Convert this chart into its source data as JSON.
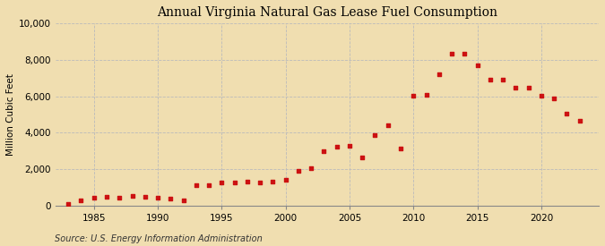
{
  "title": "Annual Virginia Natural Gas Lease Fuel Consumption",
  "ylabel": "Million Cubic Feet",
  "source": "Source: U.S. Energy Information Administration",
  "background_color": "#f0deb0",
  "plot_background_color": "#f0deb0",
  "marker_color": "#cc1111",
  "grid_color": "#bbbbbb",
  "xlim": [
    1982,
    2024.5
  ],
  "ylim": [
    0,
    10000
  ],
  "yticks": [
    0,
    2000,
    4000,
    6000,
    8000,
    10000
  ],
  "xticks": [
    1985,
    1990,
    1995,
    2000,
    2005,
    2010,
    2015,
    2020
  ],
  "years": [
    1983,
    1984,
    1985,
    1986,
    1987,
    1988,
    1989,
    1990,
    1991,
    1992,
    1993,
    1994,
    1995,
    1996,
    1997,
    1998,
    1999,
    2000,
    2001,
    2002,
    2003,
    2004,
    2005,
    2006,
    2007,
    2008,
    2009,
    2010,
    2011,
    2012,
    2013,
    2014,
    2015,
    2016,
    2017,
    2018,
    2019,
    2020,
    2021,
    2022,
    2023
  ],
  "values": [
    80,
    280,
    420,
    480,
    420,
    520,
    500,
    430,
    380,
    270,
    1100,
    1120,
    1280,
    1280,
    1300,
    1280,
    1320,
    1420,
    1900,
    2050,
    3000,
    3250,
    3300,
    2650,
    3850,
    4400,
    3150,
    6050,
    6100,
    7200,
    8350,
    8350,
    7700,
    6900,
    6900,
    6500,
    6500,
    6050,
    5900,
    5050,
    4650
  ]
}
